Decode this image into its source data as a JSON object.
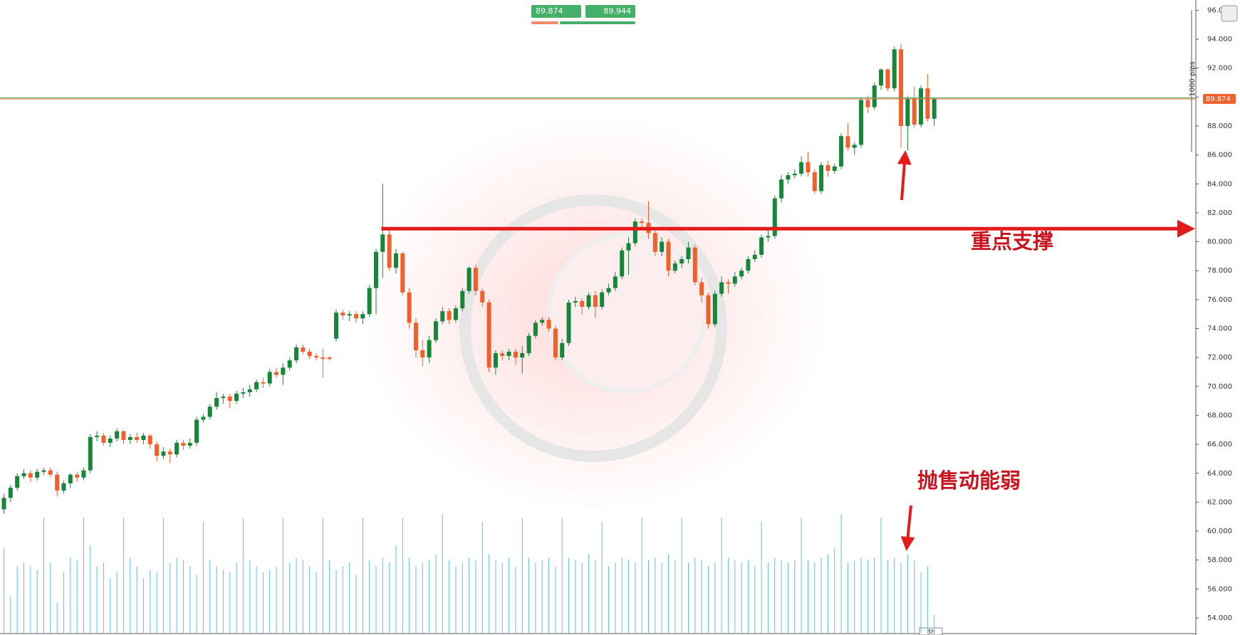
{
  "chart_data": {
    "type": "candlestick",
    "bid": 89.874,
    "ask": 89.944,
    "range_label": "1000 pips",
    "timeframe": "3h",
    "support": {
      "value": 80.9,
      "label": "重点支撑"
    },
    "annotations": [
      "抛售动能弱"
    ],
    "up_color": "#17863a",
    "down_color": "#f0602a",
    "volume_color": "#5bc0eb",
    "ylim": [
      54,
      96
    ],
    "yticks": [
      {
        "value": 54,
        "label": "54.000"
      },
      {
        "value": 56,
        "label": "56.000"
      },
      {
        "value": 58,
        "label": "58.000"
      },
      {
        "value": 60,
        "label": "60.000"
      },
      {
        "value": 62,
        "label": "62.000"
      },
      {
        "value": 64,
        "label": "64.000"
      },
      {
        "value": 66,
        "label": "66.000"
      },
      {
        "value": 68,
        "label": "68.000"
      },
      {
        "value": 70,
        "label": "70.000"
      },
      {
        "value": 72,
        "label": "72.000"
      },
      {
        "value": 74,
        "label": "74.000"
      },
      {
        "value": 76,
        "label": "76.000"
      },
      {
        "value": 78,
        "label": "78.000"
      },
      {
        "value": 80,
        "label": "80.000"
      },
      {
        "value": 82,
        "label": "82.000"
      },
      {
        "value": 84,
        "label": "84.000"
      },
      {
        "value": 86,
        "label": "86.000"
      },
      {
        "value": 88,
        "label": "88.000"
      },
      {
        "value": 90,
        "label": "90.000"
      },
      {
        "value": 92,
        "label": "92.000"
      },
      {
        "value": 94,
        "label": "94.000"
      },
      {
        "value": 96,
        "label": "96.000"
      }
    ],
    "ohlc": [
      [
        61.5,
        62.6,
        61.2,
        62.3
      ],
      [
        62.3,
        63.2,
        62.0,
        63.0
      ],
      [
        63.0,
        64.0,
        62.8,
        63.8
      ],
      [
        63.8,
        64.3,
        63.6,
        64.0
      ],
      [
        64.0,
        64.2,
        63.4,
        63.7
      ],
      [
        63.7,
        64.3,
        63.5,
        64.1
      ],
      [
        64.1,
        64.4,
        63.9,
        64.2
      ],
      [
        64.2,
        64.4,
        63.7,
        63.9
      ],
      [
        63.9,
        64.1,
        62.4,
        62.8
      ],
      [
        62.8,
        63.5,
        62.6,
        63.3
      ],
      [
        63.3,
        64.0,
        63.0,
        63.9
      ],
      [
        63.9,
        64.1,
        63.4,
        63.7
      ],
      [
        63.7,
        64.4,
        63.5,
        64.2
      ],
      [
        64.2,
        66.7,
        64.0,
        66.5
      ],
      [
        66.5,
        66.9,
        66.2,
        66.6
      ],
      [
        66.6,
        66.8,
        65.9,
        66.1
      ],
      [
        66.1,
        66.6,
        65.8,
        66.4
      ],
      [
        66.4,
        67.1,
        66.2,
        66.9
      ],
      [
        66.9,
        67.0,
        66.0,
        66.3
      ],
      [
        66.3,
        66.7,
        66.0,
        66.5
      ],
      [
        66.5,
        66.8,
        66.1,
        66.3
      ],
      [
        66.3,
        66.8,
        66.0,
        66.6
      ],
      [
        66.6,
        66.7,
        65.7,
        66.0
      ],
      [
        66.0,
        66.2,
        64.8,
        65.2
      ],
      [
        65.2,
        65.8,
        65.0,
        65.5
      ],
      [
        65.5,
        65.7,
        64.7,
        65.3
      ],
      [
        65.3,
        66.3,
        65.1,
        66.1
      ],
      [
        66.1,
        66.3,
        65.6,
        65.9
      ],
      [
        65.9,
        66.4,
        65.7,
        66.1
      ],
      [
        66.1,
        67.9,
        65.9,
        67.7
      ],
      [
        67.7,
        68.1,
        67.5,
        67.9
      ],
      [
        67.9,
        68.8,
        67.7,
        68.6
      ],
      [
        68.6,
        69.6,
        68.4,
        69.2
      ],
      [
        69.2,
        69.5,
        68.8,
        69.3
      ],
      [
        69.3,
        69.5,
        68.5,
        69.0
      ],
      [
        69.0,
        69.7,
        68.8,
        69.5
      ],
      [
        69.5,
        69.9,
        69.2,
        69.6
      ],
      [
        69.6,
        70.1,
        69.3,
        69.8
      ],
      [
        69.8,
        70.5,
        69.6,
        70.3
      ],
      [
        70.3,
        70.6,
        69.9,
        70.2
      ],
      [
        70.2,
        71.2,
        70.0,
        71.0
      ],
      [
        71.0,
        71.3,
        70.6,
        70.8
      ],
      [
        70.8,
        71.6,
        70.1,
        71.3
      ],
      [
        71.3,
        72.0,
        71.1,
        71.8
      ],
      [
        71.8,
        72.9,
        71.6,
        72.7
      ],
      [
        72.7,
        72.9,
        72.2,
        72.4
      ],
      [
        72.4,
        72.6,
        71.9,
        72.1
      ],
      [
        72.1,
        72.3,
        71.8,
        72.0
      ],
      [
        72.0,
        72.6,
        70.6,
        71.9
      ],
      [
        72.0,
        72.1,
        71.8,
        71.9
      ],
      [
        73.3,
        75.3,
        73.1,
        75.1
      ],
      [
        75.1,
        75.3,
        74.6,
        74.9
      ],
      [
        74.9,
        75.2,
        74.5,
        75.0
      ],
      [
        75.0,
        75.2,
        74.4,
        74.7
      ],
      [
        74.7,
        75.2,
        74.3,
        75.0
      ],
      [
        75.0,
        77.0,
        74.8,
        76.8
      ],
      [
        76.8,
        79.5,
        75.0,
        79.3
      ],
      [
        79.3,
        84.0,
        77.5,
        80.5
      ],
      [
        80.5,
        80.9,
        78.0,
        78.2
      ],
      [
        78.2,
        79.5,
        77.8,
        79.2
      ],
      [
        79.2,
        79.3,
        76.3,
        76.5
      ],
      [
        76.5,
        76.8,
        74.0,
        74.4
      ],
      [
        74.4,
        74.7,
        72.0,
        72.5
      ],
      [
        72.5,
        73.2,
        71.4,
        72.0
      ],
      [
        72.0,
        73.5,
        71.6,
        73.2
      ],
      [
        73.2,
        74.7,
        73.0,
        74.5
      ],
      [
        74.5,
        75.5,
        74.3,
        75.2
      ],
      [
        75.2,
        75.4,
        74.3,
        74.6
      ],
      [
        74.6,
        75.6,
        74.4,
        75.4
      ],
      [
        75.4,
        76.8,
        75.2,
        76.6
      ],
      [
        76.6,
        78.3,
        76.4,
        78.2
      ],
      [
        78.2,
        78.4,
        76.3,
        76.6
      ],
      [
        76.6,
        76.8,
        75.5,
        75.8
      ],
      [
        75.8,
        76.0,
        71.0,
        71.3
      ],
      [
        71.3,
        72.5,
        70.8,
        72.3
      ],
      [
        72.3,
        72.5,
        71.8,
        72.1
      ],
      [
        72.1,
        72.6,
        71.8,
        72.4
      ],
      [
        72.4,
        72.6,
        71.5,
        72.0
      ],
      [
        72.0,
        72.8,
        70.9,
        72.3
      ],
      [
        72.3,
        73.7,
        72.1,
        73.5
      ],
      [
        73.5,
        74.6,
        73.3,
        74.4
      ],
      [
        74.4,
        74.8,
        74.2,
        74.6
      ],
      [
        74.6,
        74.8,
        73.8,
        74.0
      ],
      [
        74.0,
        74.2,
        71.8,
        72.0
      ],
      [
        72.0,
        73.3,
        71.8,
        73.0
      ],
      [
        73.0,
        76.0,
        72.8,
        75.8
      ],
      [
        75.8,
        76.2,
        75.5,
        75.9
      ],
      [
        75.9,
        76.1,
        75.0,
        75.5
      ],
      [
        75.5,
        76.5,
        75.3,
        76.3
      ],
      [
        76.3,
        76.6,
        74.7,
        75.5
      ],
      [
        75.5,
        76.7,
        75.3,
        76.5
      ],
      [
        76.5,
        77.1,
        76.3,
        76.8
      ],
      [
        76.8,
        77.9,
        76.6,
        77.6
      ],
      [
        77.6,
        79.6,
        77.4,
        79.4
      ],
      [
        79.4,
        80.3,
        77.7,
        79.9
      ],
      [
        79.9,
        81.6,
        79.7,
        81.4
      ],
      [
        81.4,
        81.6,
        81.0,
        81.3
      ],
      [
        81.3,
        82.8,
        80.2,
        80.6
      ],
      [
        80.6,
        81.0,
        79.0,
        79.3
      ],
      [
        79.3,
        80.3,
        79.0,
        80.0
      ],
      [
        80.0,
        80.2,
        77.6,
        78.0
      ],
      [
        78.0,
        78.7,
        77.8,
        78.5
      ],
      [
        78.5,
        79.0,
        78.2,
        78.8
      ],
      [
        78.8,
        80.0,
        78.5,
        79.6
      ],
      [
        79.6,
        79.8,
        77.0,
        77.2
      ],
      [
        77.2,
        77.5,
        75.8,
        76.3
      ],
      [
        76.3,
        76.5,
        74.0,
        74.3
      ],
      [
        74.3,
        76.6,
        74.1,
        76.4
      ],
      [
        76.4,
        77.6,
        76.2,
        77.2
      ],
      [
        77.2,
        77.4,
        76.4,
        77.1
      ],
      [
        77.1,
        77.9,
        76.9,
        77.6
      ],
      [
        77.6,
        78.2,
        77.4,
        78.0
      ],
      [
        78.0,
        79.0,
        77.8,
        78.8
      ],
      [
        78.8,
        79.4,
        78.6,
        79.1
      ],
      [
        79.1,
        80.5,
        78.9,
        80.3
      ],
      [
        80.3,
        81.0,
        80.0,
        80.4
      ],
      [
        80.4,
        83.2,
        80.2,
        83.0
      ],
      [
        83.0,
        84.6,
        82.7,
        84.3
      ],
      [
        84.3,
        84.8,
        84.0,
        84.6
      ],
      [
        84.6,
        85.0,
        84.4,
        84.7
      ],
      [
        84.7,
        85.9,
        84.5,
        85.5
      ],
      [
        85.5,
        86.2,
        84.5,
        84.8
      ],
      [
        84.8,
        85.0,
        83.3,
        83.5
      ],
      [
        83.5,
        85.5,
        83.3,
        85.3
      ],
      [
        85.3,
        85.6,
        84.5,
        84.9
      ],
      [
        84.9,
        85.4,
        84.7,
        85.2
      ],
      [
        85.2,
        87.5,
        85.0,
        87.3
      ],
      [
        87.3,
        88.2,
        86.3,
        86.5
      ],
      [
        86.5,
        86.9,
        86.0,
        86.7
      ],
      [
        86.7,
        90.0,
        86.5,
        89.8
      ],
      [
        89.8,
        90.1,
        88.9,
        89.3
      ],
      [
        89.3,
        91.0,
        89.1,
        90.8
      ],
      [
        90.8,
        92.0,
        90.5,
        91.9
      ],
      [
        91.9,
        92.0,
        90.4,
        90.6
      ],
      [
        90.6,
        93.5,
        90.4,
        93.3
      ],
      [
        93.3,
        93.7,
        86.5,
        88.0
      ],
      [
        88.0,
        90.1,
        86.3,
        89.9
      ],
      [
        89.9,
        90.7,
        87.9,
        88.1
      ],
      [
        88.1,
        90.8,
        87.9,
        90.6
      ],
      [
        90.6,
        91.6,
        88.3,
        88.5
      ],
      [
        88.5,
        90.0,
        88.0,
        89.874
      ]
    ],
    "volume": [
      70,
      30,
      55,
      58,
      55,
      52,
      95,
      58,
      25,
      50,
      62,
      60,
      95,
      72,
      55,
      58,
      45,
      50,
      95,
      62,
      55,
      45,
      52,
      50,
      95,
      58,
      62,
      60,
      55,
      48,
      92,
      60,
      55,
      52,
      50,
      58,
      95,
      60,
      55,
      50,
      52,
      55,
      95,
      58,
      62,
      60,
      55,
      50,
      95,
      60,
      52,
      55,
      58,
      48,
      95,
      60,
      55,
      62,
      58,
      72,
      95,
      62,
      55,
      58,
      60,
      65,
      98,
      60,
      55,
      58,
      62,
      60,
      92,
      65,
      60,
      58,
      62,
      55,
      95,
      62,
      58,
      60,
      62,
      55,
      95,
      62,
      60,
      58,
      65,
      60,
      92,
      55,
      58,
      62,
      60,
      58,
      95,
      60,
      62,
      58,
      65,
      60,
      95,
      58,
      62,
      60,
      55,
      58,
      95,
      62,
      60,
      58,
      60,
      55,
      92,
      58,
      62,
      60,
      58,
      60,
      95,
      60,
      58,
      62,
      65,
      70,
      98,
      58,
      60,
      62,
      60,
      62,
      95,
      60,
      62,
      58,
      65,
      60,
      50,
      55,
      15
    ]
  }
}
